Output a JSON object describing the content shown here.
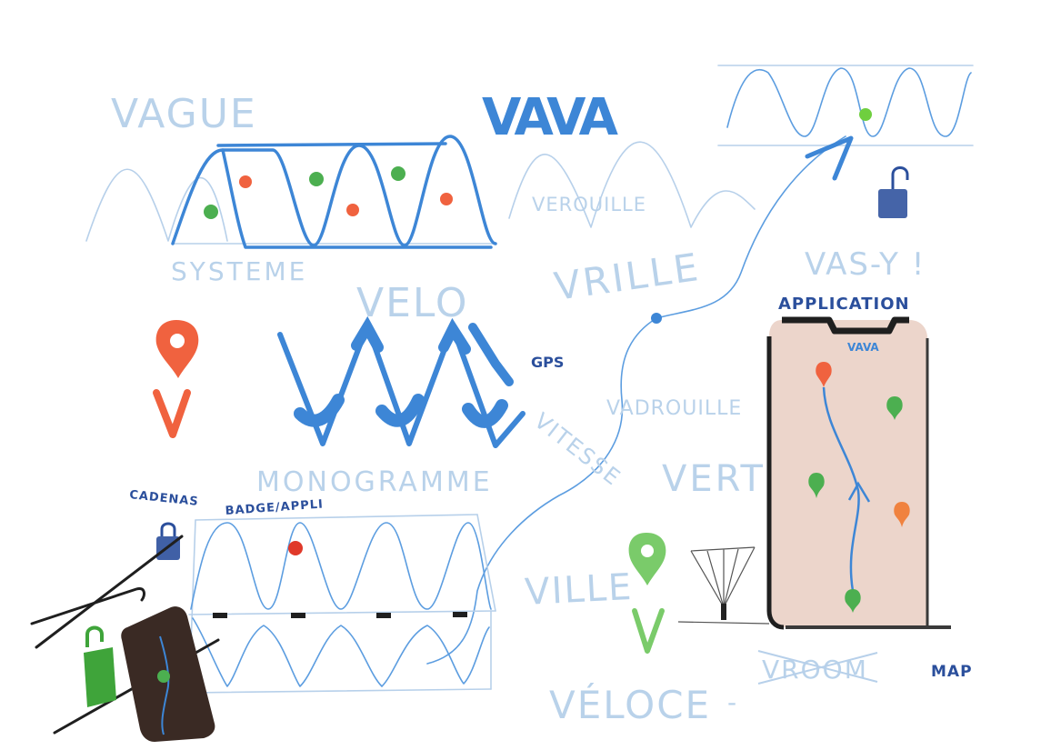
{
  "labels": {
    "vague": "VAGUE",
    "vava_top": "VAVA",
    "verouille": "VEROUILLE",
    "systeme": "SYSTEME",
    "velo": "VELO",
    "vrille": "VRILLE",
    "vas_y": "VAS-Y !",
    "application": "APPLICATION",
    "vava_phone": "VAVA",
    "gps": "GPS",
    "vadrouille": "VADROUILLE",
    "vitesse": "VITESSE",
    "monogramme": "MONOGRAMME",
    "vert": "VERT",
    "cadenas": "CADENAS",
    "badge_appli": "BADGE/APPLI",
    "ville": "VILLE",
    "veloce": "VÉLOCE",
    "vroom": "VROOM",
    "map": "MAP",
    "dash": "-"
  },
  "icons": {
    "location_pin_orange": "location-pin-icon",
    "location_pin_green": "location-pin-icon",
    "padlock_closed": "padlock-icon",
    "padlock_open": "padlock-open-icon",
    "smartphone": "smartphone-icon"
  },
  "colors": {
    "blue": "#3d86d6",
    "light_blue": "#b7d0ea",
    "navy": "#2b4f9c",
    "orange": "#f0623f",
    "green": "#4caf50",
    "phone_screen": "#ecd5cb",
    "dark": "#1f1f1f"
  }
}
